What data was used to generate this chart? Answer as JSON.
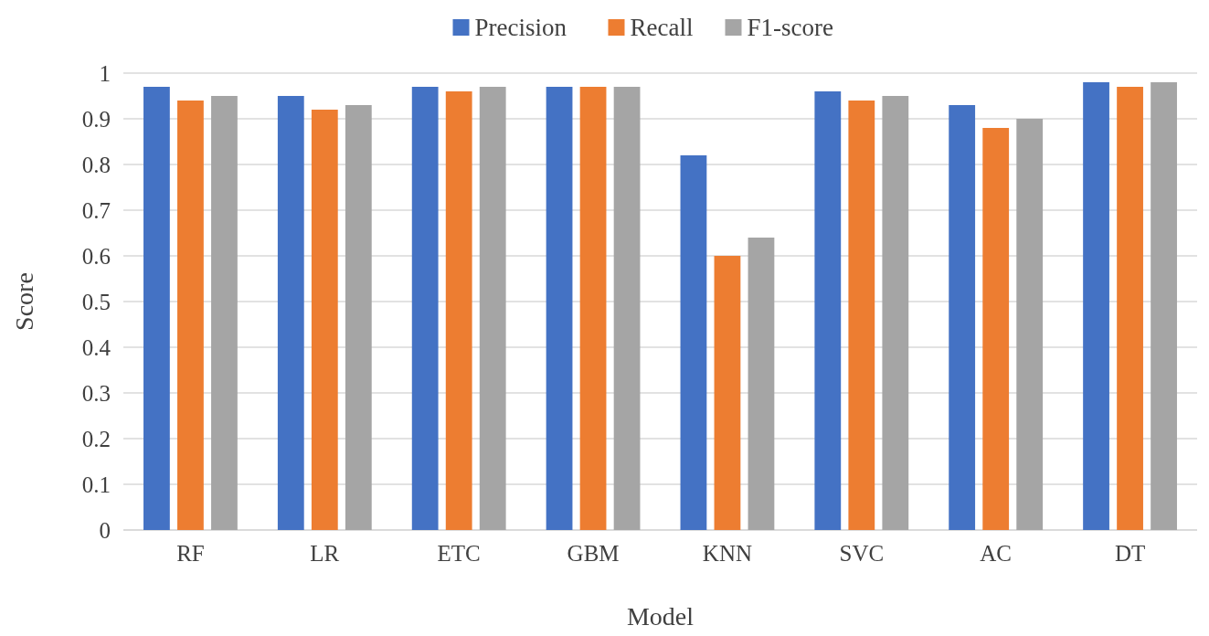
{
  "chart_data": {
    "type": "bar",
    "xlabel": "Model",
    "ylabel": "Score",
    "categories": [
      "RF",
      "LR",
      "ETC",
      "GBM",
      "KNN",
      "SVC",
      "AC",
      "DT"
    ],
    "series": [
      {
        "name": "Precision",
        "color": "#4472c4",
        "values": [
          0.97,
          0.95,
          0.97,
          0.97,
          0.82,
          0.96,
          0.93,
          0.98
        ]
      },
      {
        "name": "Recall",
        "color": "#ed7d31",
        "values": [
          0.94,
          0.92,
          0.96,
          0.97,
          0.6,
          0.94,
          0.88,
          0.97
        ]
      },
      {
        "name": "F1-score",
        "color": "#a5a5a5",
        "values": [
          0.95,
          0.93,
          0.97,
          0.97,
          0.64,
          0.95,
          0.9,
          0.98
        ]
      }
    ],
    "ylim": [
      0,
      1
    ],
    "yticks": [
      0,
      0.1,
      0.2,
      0.3,
      0.4,
      0.5,
      0.6,
      0.7,
      0.8,
      0.9,
      1
    ],
    "grid": "y",
    "legend": "top"
  }
}
